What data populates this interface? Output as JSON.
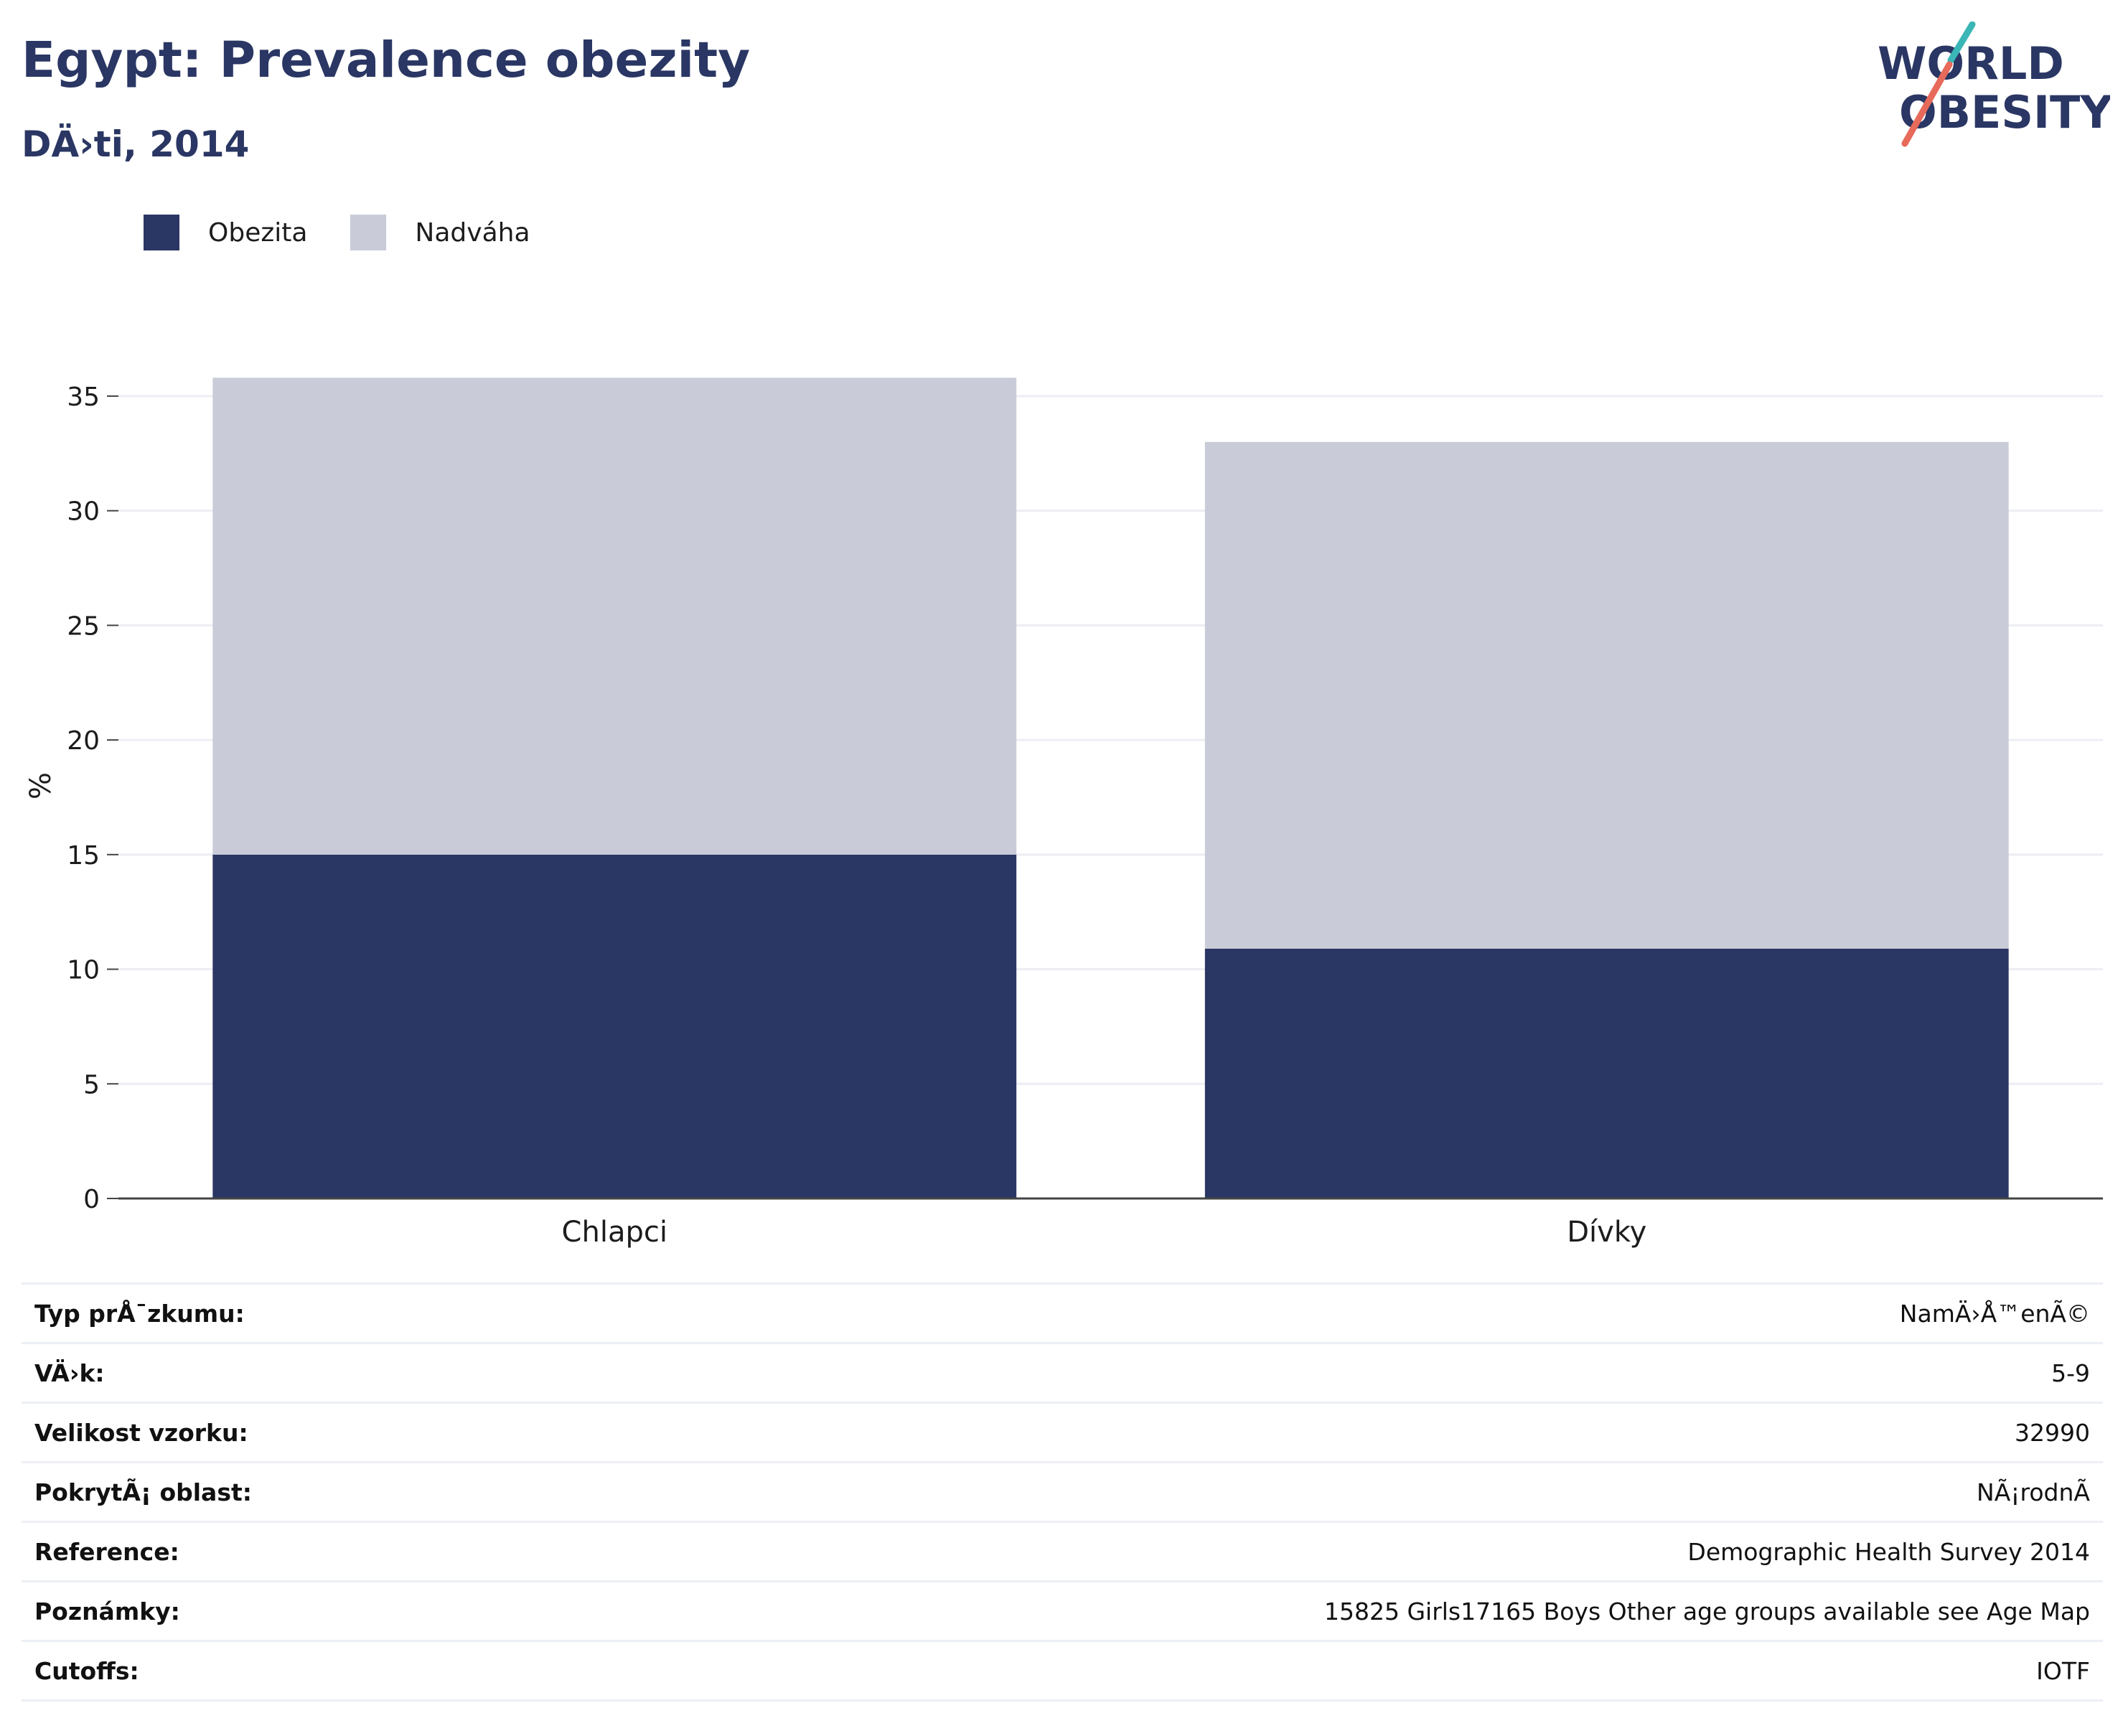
{
  "header": {
    "title": "Egypt: Prevalence obezity",
    "subtitle": "DÄ›ti, 2014"
  },
  "logo": {
    "line1": "WORLD",
    "line2": "OBESITY",
    "text_color": "#2a3663",
    "slash_colors": [
      "#3bb6b7",
      "#e76a5b"
    ]
  },
  "legend": [
    {
      "label": "Obezita",
      "color": "#2a3663"
    },
    {
      "label": "Nadváha",
      "color": "#c9ccd8"
    }
  ],
  "chart_data": {
    "type": "bar",
    "stacked": true,
    "categories": [
      "Chlapci",
      "Dívky"
    ],
    "series": [
      {
        "name": "Obezita",
        "values": [
          15.0,
          10.9
        ],
        "color": "#2a3663"
      },
      {
        "name": "Nadváha",
        "values": [
          20.8,
          22.1
        ],
        "color": "#c9ccd8"
      }
    ],
    "title": "Egypt: Prevalence obezity",
    "subtitle": "DÄ›ti, 2014",
    "xlabel": "",
    "ylabel": "%",
    "ylim": [
      0,
      36
    ],
    "yticks": [
      0,
      5,
      10,
      15,
      20,
      25,
      30,
      35
    ],
    "grid": true,
    "legend_position": "top-left"
  },
  "info": [
    {
      "key": "Typ prÅ¯zkumu:",
      "value": "NamÄ›Å™enÃ©"
    },
    {
      "key": "VÄ›k:",
      "value": "5-9"
    },
    {
      "key": "Velikost vzorku:",
      "value": "32990"
    },
    {
      "key": "PokrytÃ¡ oblast:",
      "value": "NÃ¡rodnÃ"
    },
    {
      "key": "Reference:",
      "value": "Demographic Health Survey 2014"
    },
    {
      "key": "Poznámky:",
      "value": "15825 Girls17165 Boys Other age groups available see Age Map"
    },
    {
      "key": "Cutoffs:",
      "value": "IOTF"
    }
  ]
}
